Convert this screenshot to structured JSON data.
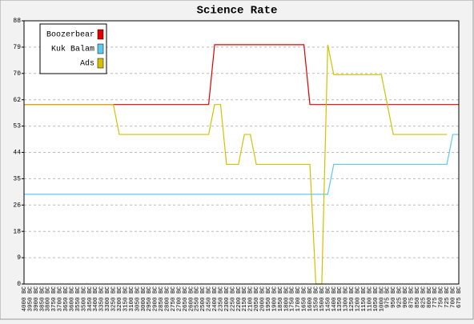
{
  "chart_data": {
    "type": "line",
    "title": "Science Rate",
    "categories": [
      "4000 BC",
      "3950 BC",
      "3900 BC",
      "3850 BC",
      "3800 BC",
      "3750 BC",
      "3700 BC",
      "3650 BC",
      "3600 BC",
      "3550 BC",
      "3500 BC",
      "3450 BC",
      "3400 BC",
      "3350 BC",
      "3300 BC",
      "3250 BC",
      "3200 BC",
      "3150 BC",
      "3100 BC",
      "3050 BC",
      "3000 BC",
      "2950 BC",
      "2900 BC",
      "2850 BC",
      "2800 BC",
      "2750 BC",
      "2700 BC",
      "2650 BC",
      "2600 BC",
      "2550 BC",
      "2500 BC",
      "2450 BC",
      "2400 BC",
      "2350 BC",
      "2300 BC",
      "2250 BC",
      "2200 BC",
      "2150 BC",
      "2100 BC",
      "2050 BC",
      "2000 BC",
      "1950 BC",
      "1900 BC",
      "1850 BC",
      "1800 BC",
      "1750 BC",
      "1700 BC",
      "1650 BC",
      "1600 BC",
      "1550 BC",
      "1500 BC",
      "1450 BC",
      "1400 BC",
      "1350 BC",
      "1300 BC",
      "1250 BC",
      "1200 BC",
      "1150 BC",
      "1100 BC",
      "1050 BC",
      "1000 BC",
      "975 BC",
      "950 BC",
      "925 BC",
      "900 BC",
      "875 BC",
      "850 BC",
      "825 BC",
      "800 BC",
      "775 BC",
      "750 BC",
      "725 BC",
      "700 BC",
      "675 BC"
    ],
    "series": [
      {
        "name": "Boozerbear",
        "color": "#e00000",
        "values": [
          60,
          60,
          60,
          60,
          60,
          60,
          60,
          60,
          60,
          60,
          60,
          60,
          60,
          60,
          60,
          60,
          60,
          60,
          60,
          60,
          60,
          60,
          60,
          60,
          60,
          60,
          60,
          60,
          60,
          60,
          60,
          60,
          80,
          80,
          80,
          80,
          80,
          80,
          80,
          80,
          80,
          80,
          80,
          80,
          80,
          80,
          80,
          80,
          60,
          60,
          60,
          60,
          60,
          60,
          60,
          60,
          60,
          60,
          60,
          60,
          60,
          60,
          60,
          60,
          60,
          60,
          60,
          60,
          60,
          60,
          60,
          60,
          60,
          60
        ]
      },
      {
        "name": "Kuk Balam",
        "color": "#5ac8f0",
        "values": [
          30,
          30,
          30,
          30,
          30,
          30,
          30,
          30,
          30,
          30,
          30,
          30,
          30,
          30,
          30,
          30,
          30,
          30,
          30,
          30,
          30,
          30,
          30,
          30,
          30,
          30,
          30,
          30,
          30,
          30,
          30,
          30,
          30,
          30,
          30,
          30,
          30,
          30,
          30,
          30,
          30,
          30,
          30,
          30,
          30,
          30,
          30,
          30,
          30,
          30,
          30,
          30,
          40,
          40,
          40,
          40,
          40,
          40,
          40,
          40,
          40,
          40,
          40,
          40,
          40,
          40,
          40,
          40,
          40,
          40,
          40,
          40,
          50,
          50
        ]
      },
      {
        "name": "Ads",
        "color": "#d4c000",
        "values": [
          60,
          60,
          60,
          60,
          60,
          60,
          60,
          60,
          60,
          60,
          60,
          60,
          60,
          60,
          60,
          60,
          50,
          50,
          50,
          50,
          50,
          50,
          50,
          50,
          50,
          50,
          50,
          50,
          50,
          50,
          50,
          50,
          60,
          60,
          40,
          40,
          40,
          50,
          50,
          40,
          40,
          40,
          40,
          40,
          40,
          40,
          40,
          40,
          40,
          0,
          0,
          80,
          70,
          70,
          70,
          70,
          70,
          70,
          70,
          70,
          70,
          60,
          50,
          50,
          50,
          50,
          50,
          50,
          50,
          50,
          50,
          50,
          null,
          null
        ]
      }
    ],
    "ylim": [
      0,
      88
    ],
    "yticks": [
      0,
      {
        "value": 8.8,
        "label": "9"
      },
      {
        "value": 17.6,
        "label": "18"
      },
      {
        "value": 26.4,
        "label": "26"
      },
      {
        "value": 35.2,
        "label": "35"
      },
      {
        "value": 44,
        "label": "44"
      },
      {
        "value": 52.8,
        "label": "53"
      },
      {
        "value": 61.6,
        "label": "62"
      },
      {
        "value": 70.4,
        "label": "70"
      },
      {
        "value": 79.2,
        "label": "79"
      },
      88
    ],
    "grid": true,
    "legend": "upper-left"
  }
}
